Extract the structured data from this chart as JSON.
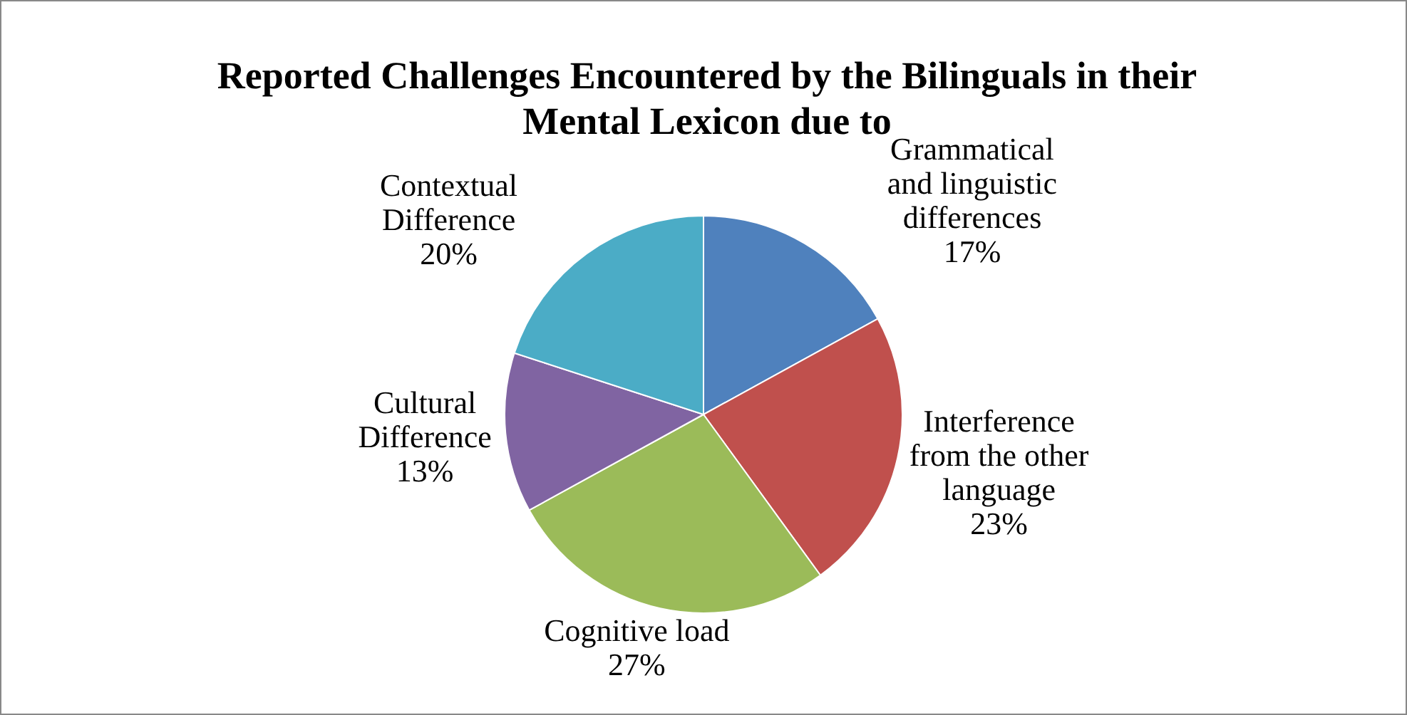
{
  "chart_data": {
    "type": "pie",
    "title": "Reported Challenges Encountered by the Bilinguals in their Mental Lexicon due to",
    "categories": [
      "Grammatical and linguistic differences",
      "Interference from the other language",
      "Cognitive load",
      "Cultural Difference",
      "Contextual Difference"
    ],
    "values": [
      17,
      23,
      27,
      13,
      20
    ],
    "colors": [
      "#4f81bd",
      "#c0504d",
      "#9bbb59",
      "#8064a2",
      "#4bacc6"
    ],
    "value_labels": [
      "17%",
      "23%",
      "27%",
      "13%",
      "20%"
    ],
    "legend": false
  }
}
